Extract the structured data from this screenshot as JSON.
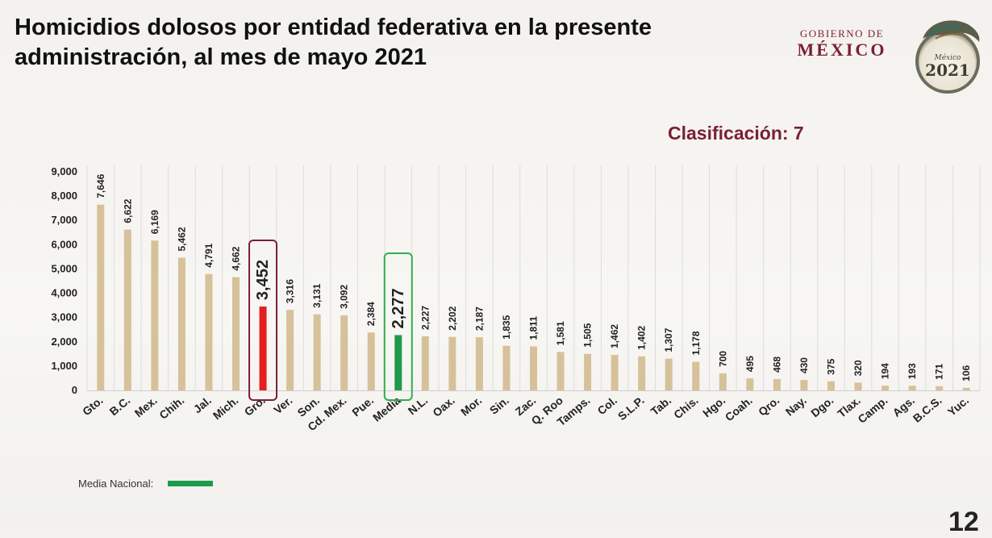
{
  "header": {
    "title": "Homicidios dolosos por entidad federativa en la presente administración, al mes de mayo 2021",
    "gov_line1": "GOBIERNO DE",
    "gov_line2": "MÉXICO",
    "seal_icon": "mexico-2021-seal-icon",
    "seal_text_small": "México",
    "seal_text_year": "2021"
  },
  "classification": "Clasificación: 7",
  "legend": {
    "label": "Media Nacional:",
    "color": "#1e9a4a"
  },
  "page_number": "12",
  "colors": {
    "bar": "#d6c19a",
    "highlight_bar": "#e51f1f",
    "highlight_box": "#7a1f35",
    "media_bar": "#1e9a4a",
    "media_box": "#2fae4e"
  },
  "chart_data": {
    "type": "bar",
    "categories": [
      "Gto.",
      "B.C.",
      "Mex.",
      "Chih.",
      "Jal.",
      "Mich.",
      "Gro.",
      "Ver.",
      "Son.",
      "Cd. Mex.",
      "Pue.",
      "Media",
      "N.L.",
      "Oax.",
      "Mor.",
      "Sin.",
      "Zac.",
      "Q. Roo",
      "Tamps.",
      "Col.",
      "S.L.P.",
      "Tab.",
      "Chis.",
      "Hgo.",
      "Coah.",
      "Qro.",
      "Nay.",
      "Dgo.",
      "Tlax.",
      "Camp.",
      "Ags.",
      "B.C.S.",
      "Yuc."
    ],
    "values": [
      7646,
      6622,
      6169,
      5462,
      4791,
      4662,
      3452,
      3316,
      3131,
      3092,
      2384,
      2277,
      2227,
      2202,
      2187,
      1835,
      1811,
      1581,
      1505,
      1462,
      1402,
      1307,
      1178,
      700,
      495,
      468,
      430,
      375,
      320,
      194,
      193,
      171,
      106
    ],
    "value_labels": [
      "7,646",
      "6,622",
      "6,169",
      "5,462",
      "4,791",
      "4,662",
      "3,452",
      "3,316",
      "3,131",
      "3,092",
      "2,384",
      "2,277",
      "2,227",
      "2,202",
      "2,187",
      "1,835",
      "1,811",
      "1,581",
      "1,505",
      "1,462",
      "1,402",
      "1,307",
      "1,178",
      "700",
      "495",
      "468",
      "430",
      "375",
      "320",
      "194",
      "193",
      "171",
      "106"
    ],
    "yticks": [
      "0",
      "1,000",
      "2,000",
      "3,000",
      "4,000",
      "5,000",
      "6,000",
      "7,000",
      "8,000",
      "9,000"
    ],
    "ylim": [
      0,
      9000
    ],
    "highlight": {
      "category": "Gro.",
      "type": "state"
    },
    "media": {
      "category": "Media"
    },
    "grid": "vertical separators"
  }
}
